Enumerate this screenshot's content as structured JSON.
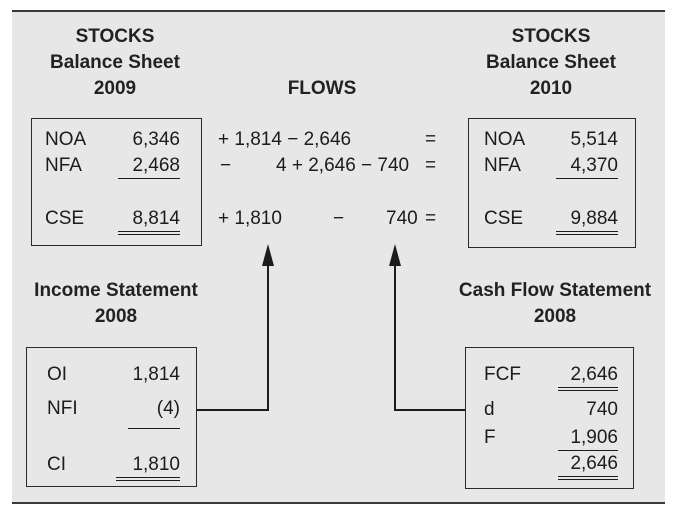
{
  "headers": {
    "stocks_2009": [
      "STOCKS",
      "Balance Sheet",
      "2009"
    ],
    "flows": "FLOWS",
    "stocks_2010": [
      "STOCKS",
      "Balance Sheet",
      "2010"
    ],
    "income_statement": [
      "Income Statement",
      "2008"
    ],
    "cash_flow_statement": [
      "Cash Flow Statement",
      "2008"
    ]
  },
  "bs2009": [
    {
      "label": "NOA",
      "value": "6,346"
    },
    {
      "label": "NFA",
      "value": "2,468"
    },
    {
      "label": "CSE",
      "value": "8,814"
    }
  ],
  "flows_rows": [
    {
      "a": "+ 1,814 − 2,646",
      "b": "",
      "eq": "="
    },
    {
      "a": "−",
      "b": "4 + 2,646 − 740",
      "eq": "="
    },
    {
      "a": "+ 1,810",
      "mid": "−",
      "b": "740",
      "eq": "="
    }
  ],
  "bs2010": [
    {
      "label": "NOA",
      "value": "5,514"
    },
    {
      "label": "NFA",
      "value": "4,370"
    },
    {
      "label": "CSE",
      "value": "9,884"
    }
  ],
  "income": [
    {
      "label": "OI",
      "value": "1,814"
    },
    {
      "label": "NFI",
      "value": "(4)"
    },
    {
      "label": "CI",
      "value": "1,810"
    }
  ],
  "cashflow": [
    {
      "label": "FCF",
      "value": "2,646"
    },
    {
      "label": "d",
      "value": "740"
    },
    {
      "label": "F",
      "value": "1,906"
    },
    {
      "label": "",
      "value": "2,646"
    }
  ]
}
